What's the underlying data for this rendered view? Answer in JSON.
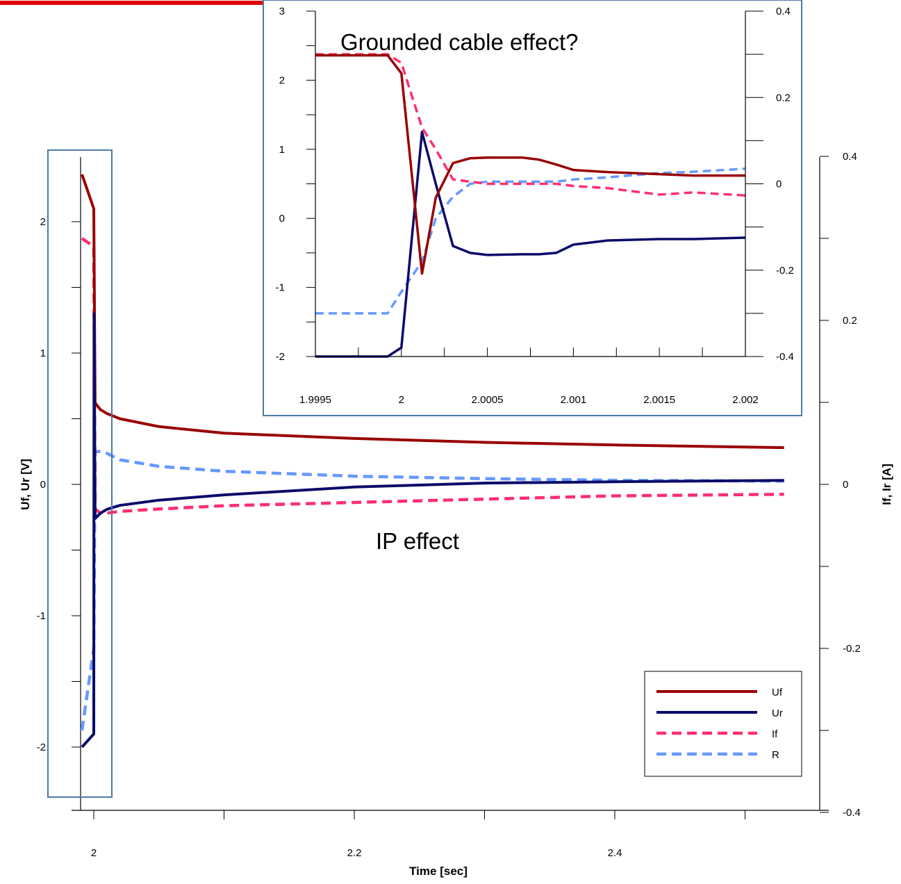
{
  "colors": {
    "Uf": "#990000",
    "Ur": "#0b0b6b",
    "If": "#ff2f6e",
    "R": "#6699ff",
    "box": "#4d7aa8",
    "topbar": "#e00000"
  },
  "chart_data": [
    {
      "type": "line",
      "xlabel": "Time [sec]",
      "ylabel": "Uf, Ur [V]",
      "y2label": "If, Ir [A]",
      "xlim": [
        1.99,
        2.56
      ],
      "ylim": [
        -2.4,
        2.5
      ],
      "y2lim": [
        -0.4,
        0.4
      ],
      "x_ticks": [
        "2",
        "2.2",
        "2.4"
      ],
      "y_ticks": [
        "-2",
        "-1",
        "0",
        "1",
        "2"
      ],
      "y2_ticks": [
        "-0.4",
        "-0.2",
        "0",
        "0.2",
        "0.4"
      ],
      "annotation": "IP effect",
      "legend": {
        "position": "bottom-right",
        "entries": [
          "Uf",
          "Ur",
          "If",
          "R"
        ]
      },
      "series": [
        {
          "name": "Uf",
          "axis": "left",
          "style": "solid",
          "x": [
            1.9995,
            1.9999,
            2.0,
            2.001,
            2.005,
            2.01,
            2.02,
            2.05,
            2.1,
            2.2,
            2.3,
            2.4,
            2.53
          ],
          "y": [
            2.36,
            2.36,
            2.1,
            0.62,
            0.57,
            0.54,
            0.5,
            0.44,
            0.39,
            0.35,
            0.32,
            0.3,
            0.28
          ]
        },
        {
          "name": "Ur",
          "axis": "left",
          "style": "solid",
          "x": [
            1.9995,
            1.9999,
            2.0,
            2.0002,
            2.001,
            2.005,
            2.01,
            2.02,
            2.05,
            2.1,
            2.2,
            2.3,
            2.4,
            2.53
          ],
          "y": [
            -2.0,
            -2.0,
            -1.9,
            1.3,
            -0.26,
            -0.22,
            -0.19,
            -0.16,
            -0.12,
            -0.08,
            -0.02,
            0.01,
            0.02,
            0.03
          ]
        },
        {
          "name": "If",
          "axis": "right",
          "style": "dashed",
          "x": [
            1.9995,
            1.9999,
            2.0,
            2.001,
            2.005,
            2.01,
            2.02,
            2.05,
            2.1,
            2.2,
            2.3,
            2.4,
            2.53
          ],
          "y": [
            0.3,
            0.3,
            0.29,
            -0.03,
            -0.035,
            -0.035,
            -0.033,
            -0.03,
            -0.026,
            -0.022,
            -0.018,
            -0.014,
            -0.012
          ]
        },
        {
          "name": "R",
          "axis": "right",
          "style": "dashed",
          "x": [
            1.9995,
            1.9999,
            2.0,
            2.001,
            2.005,
            2.01,
            2.02,
            2.05,
            2.1,
            2.2,
            2.3,
            2.4,
            2.53
          ],
          "y": [
            -0.3,
            -0.3,
            -0.2,
            0.04,
            0.04,
            0.038,
            0.03,
            0.022,
            0.016,
            0.01,
            0.007,
            0.005,
            0.004
          ]
        }
      ]
    },
    {
      "type": "line",
      "title": "Grounded cable effect?",
      "xlim": [
        1.9995,
        2.002
      ],
      "ylim": [
        -2,
        3
      ],
      "y2lim": [
        -0.4,
        0.4
      ],
      "x_ticks": [
        "1.9995",
        "2",
        "2.0005",
        "2.001",
        "2.0015",
        "2.002"
      ],
      "y_ticks": [
        "-2",
        "-1",
        "0",
        "1",
        "2",
        "3"
      ],
      "y2_ticks": [
        "-0.4",
        "-0.2",
        "0",
        "0.2",
        "0.4"
      ],
      "series": [
        {
          "name": "Uf",
          "axis": "left",
          "style": "solid",
          "x": [
            1.9995,
            1.99992,
            2.0,
            2.00012,
            2.0002,
            2.0003,
            2.0004,
            2.0005,
            2.0007,
            2.0008,
            2.0009,
            2.001,
            2.0012,
            2.0015,
            2.0017,
            2.002
          ],
          "y": [
            2.36,
            2.36,
            2.1,
            -0.8,
            0.3,
            0.8,
            0.87,
            0.88,
            0.88,
            0.85,
            0.78,
            0.7,
            0.67,
            0.64,
            0.62,
            0.62
          ]
        },
        {
          "name": "Ur",
          "axis": "left",
          "style": "solid",
          "x": [
            1.9995,
            1.99992,
            2.0,
            2.00012,
            2.0002,
            2.0003,
            2.0004,
            2.0005,
            2.0007,
            2.0008,
            2.0009,
            2.001,
            2.0012,
            2.0015,
            2.0017,
            2.002
          ],
          "y": [
            -2.0,
            -2.0,
            -1.87,
            1.25,
            0.5,
            -0.4,
            -0.5,
            -0.53,
            -0.52,
            -0.52,
            -0.5,
            -0.38,
            -0.32,
            -0.3,
            -0.3,
            -0.28
          ]
        },
        {
          "name": "If",
          "axis": "right",
          "style": "dashed",
          "x": [
            1.9995,
            1.99992,
            2.0,
            2.00012,
            2.0002,
            2.0003,
            2.0005,
            2.0007,
            2.0009,
            2.001,
            2.0012,
            2.0015,
            2.0017,
            2.002
          ],
          "y": [
            0.3,
            0.3,
            0.28,
            0.13,
            0.08,
            0.01,
            0.0,
            0.0,
            0.0,
            -0.005,
            -0.01,
            -0.025,
            -0.02,
            -0.027
          ]
        },
        {
          "name": "R",
          "axis": "right",
          "style": "dashed",
          "x": [
            1.9995,
            1.99992,
            2.0,
            2.00012,
            2.0002,
            2.0003,
            2.0004,
            2.0005,
            2.0007,
            2.0009,
            2.001,
            2.0012,
            2.0015,
            2.0017,
            2.002
          ],
          "y": [
            -0.3,
            -0.3,
            -0.25,
            -0.18,
            -0.08,
            -0.03,
            0.0,
            0.005,
            0.005,
            0.005,
            0.01,
            0.015,
            0.025,
            0.028,
            0.035
          ]
        }
      ]
    }
  ]
}
